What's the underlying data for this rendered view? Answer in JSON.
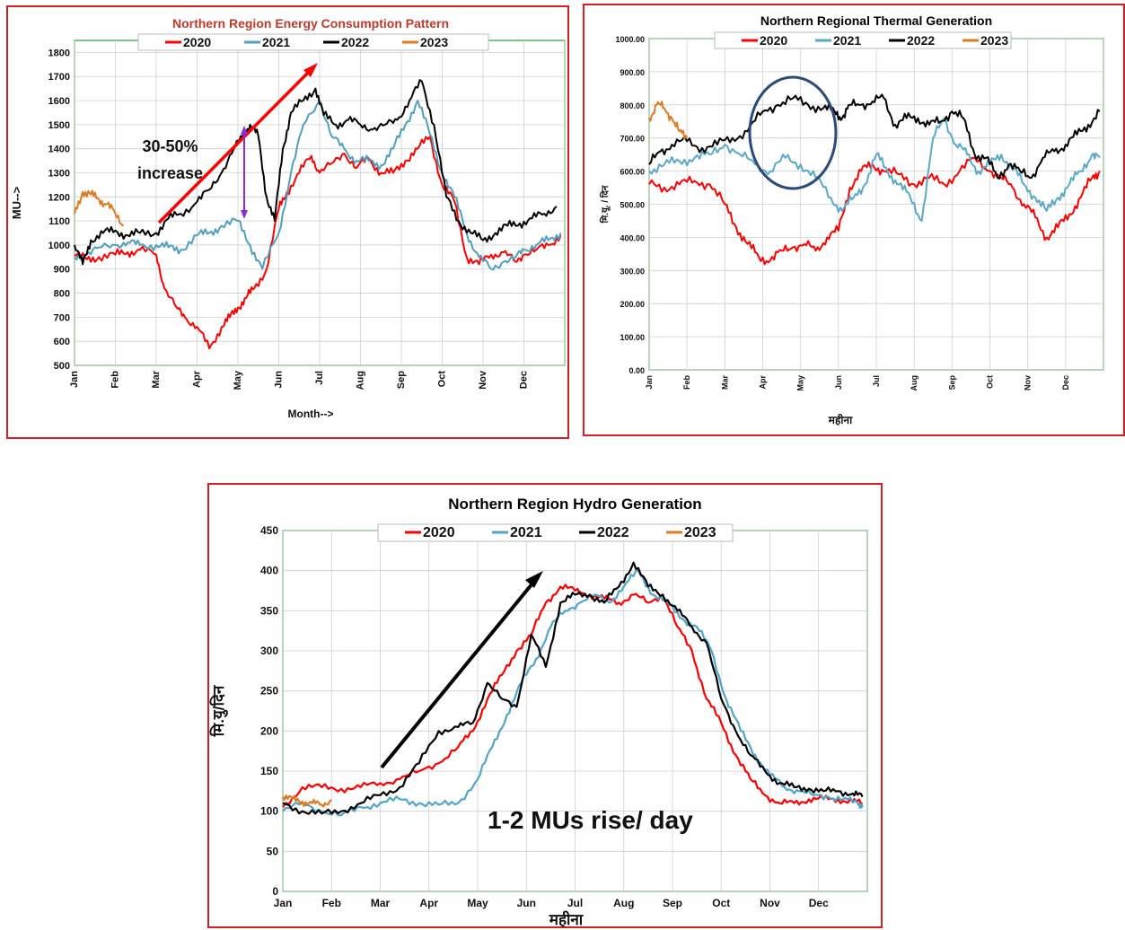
{
  "chart_data": [
    {
      "type": "line",
      "title": "Northern Region Energy Consumption  Pattern",
      "xlabel": "Month-->",
      "ylabel": "MU-->",
      "ylim": [
        500,
        1850
      ],
      "yticks": [
        500,
        600,
        700,
        800,
        900,
        1000,
        1100,
        1200,
        1300,
        1400,
        1500,
        1600,
        1700,
        1800
      ],
      "months": [
        "Jan",
        "Feb",
        "Mar",
        "Apr",
        "May",
        "Jun",
        "Jul",
        "Aug",
        "Sep",
        "Oct",
        "Nov",
        "Dec"
      ],
      "grid": true,
      "legend": "top",
      "series": [
        {
          "name": "2020",
          "color": "#ff0000",
          "x": [
            0,
            0.3,
            0.6,
            1,
            1.3,
            1.6,
            2,
            2.2,
            2.5,
            2.7,
            3,
            3.3,
            3.6,
            3.8,
            4,
            4.2,
            4.4,
            4.7,
            5,
            5.2,
            5.5,
            5.8,
            6,
            6.3,
            6.6,
            6.9,
            7.2,
            7.5,
            7.8,
            8.1,
            8.4,
            8.7,
            9,
            9.3,
            9.6,
            9.9,
            10.2,
            10.5,
            10.8,
            11,
            11.3,
            11.6,
            11.9
          ],
          "y": [
            960,
            940,
            950,
            960,
            970,
            980,
            960,
            820,
            740,
            700,
            660,
            570,
            660,
            700,
            740,
            780,
            820,
            900,
            1150,
            1220,
            1300,
            1370,
            1300,
            1340,
            1380,
            1320,
            1360,
            1300,
            1300,
            1350,
            1400,
            1450,
            1250,
            1180,
            950,
            920,
            960,
            970,
            930,
            960,
            980,
            1000,
            1040
          ]
        },
        {
          "name": "2021",
          "color": "#4f9fbf",
          "x": [
            0,
            0.3,
            0.6,
            1,
            1.3,
            1.6,
            2,
            2.3,
            2.6,
            3,
            3.3,
            3.6,
            4,
            4.3,
            4.6,
            5,
            5.3,
            5.6,
            6,
            6.3,
            6.6,
            6.9,
            7.2,
            7.5,
            7.8,
            8.1,
            8.4,
            8.7,
            9,
            9.3,
            9.6,
            9.9,
            10.2,
            10.5,
            10.8,
            11,
            11.3,
            11.6,
            11.9
          ],
          "y": [
            950,
            960,
            990,
            1000,
            1010,
            1000,
            1000,
            990,
            980,
            1040,
            1050,
            1080,
            1100,
            1000,
            900,
            1050,
            1300,
            1500,
            1600,
            1450,
            1400,
            1350,
            1350,
            1330,
            1400,
            1500,
            1600,
            1460,
            1300,
            1200,
            1050,
            950,
            900,
            930,
            950,
            980,
            1000,
            1020,
            1050
          ]
        },
        {
          "name": "2022",
          "color": "#000000",
          "x": [
            0,
            0.2,
            0.4,
            0.7,
            1,
            1.3,
            1.6,
            2,
            2.3,
            2.6,
            3,
            3.3,
            3.6,
            3.9,
            4.1,
            4.3,
            4.5,
            4.7,
            4.9,
            5.1,
            5.3,
            5.6,
            5.9,
            6.1,
            6.4,
            6.7,
            7,
            7.3,
            7.6,
            7.9,
            8.2,
            8.5,
            8.8,
            9.1,
            9.4,
            9.7,
            10,
            10.3,
            10.6,
            10.9,
            11.2,
            11.5,
            11.8
          ],
          "y": [
            1000,
            920,
            1020,
            1050,
            1060,
            1040,
            1050,
            1050,
            1110,
            1130,
            1180,
            1230,
            1300,
            1400,
            1450,
            1500,
            1450,
            1200,
            1100,
            1400,
            1550,
            1600,
            1650,
            1540,
            1500,
            1520,
            1500,
            1480,
            1500,
            1520,
            1600,
            1680,
            1500,
            1200,
            1100,
            1050,
            1020,
            1050,
            1080,
            1090,
            1110,
            1130,
            1160
          ]
        },
        {
          "name": "2023",
          "color": "#e07a1f",
          "x": [
            0,
            0.2,
            0.4,
            0.6,
            0.8,
            1,
            1.2
          ],
          "y": [
            1130,
            1220,
            1210,
            1190,
            1170,
            1130,
            1080
          ]
        }
      ]
    },
    {
      "type": "line",
      "title": "Northern Regional Thermal Generation",
      "xlabel": "महीना",
      "ylabel": "मि.यू. / दिन",
      "ylim": [
        0,
        1000
      ],
      "yticks": [
        "0.00",
        "100.00",
        "200.00",
        "300.00",
        "400.00",
        "500.00",
        "600.00",
        "700.00",
        "800.00",
        "900.00",
        "1000.00"
      ],
      "months": [
        "Jan",
        "Feb",
        "Mar",
        "Apr",
        "May",
        "Jun",
        "Jul",
        "Aug",
        "Sep",
        "Oct",
        "Nov",
        "Dec"
      ],
      "grid": true,
      "legend": "top",
      "series": [
        {
          "name": "2020",
          "color": "#ff0000",
          "x": [
            0,
            0.4,
            0.8,
            1.2,
            1.6,
            2,
            2.3,
            2.6,
            2.9,
            3.2,
            3.5,
            3.8,
            4.1,
            4.4,
            4.7,
            5,
            5.3,
            5.6,
            5.9,
            6.2,
            6.6,
            7,
            7.4,
            7.8,
            8.2,
            8.6,
            9,
            9.3,
            9.6,
            9.9,
            10.2,
            10.5,
            10.8,
            11.1,
            11.4,
            11.7,
            11.9
          ],
          "y": [
            560,
            550,
            560,
            570,
            560,
            500,
            430,
            380,
            340,
            330,
            360,
            370,
            380,
            360,
            400,
            420,
            550,
            600,
            620,
            600,
            590,
            560,
            580,
            560,
            600,
            640,
            600,
            580,
            550,
            500,
            460,
            400,
            430,
            470,
            520,
            580,
            600
          ]
        },
        {
          "name": "2021",
          "color": "#5aa9c9",
          "x": [
            0,
            0.4,
            0.8,
            1.2,
            1.6,
            2,
            2.4,
            2.8,
            3.2,
            3.6,
            4,
            4.4,
            4.8,
            5.1,
            5.4,
            5.7,
            6,
            6.3,
            6.6,
            6.9,
            7.2,
            7.5,
            7.8,
            8.1,
            8.4,
            8.7,
            9,
            9.3,
            9.6,
            9.9,
            10.2,
            10.5,
            10.8,
            11.1,
            11.4,
            11.7,
            11.9
          ],
          "y": [
            600,
            620,
            630,
            640,
            650,
            680,
            650,
            620,
            600,
            640,
            620,
            580,
            520,
            480,
            520,
            560,
            650,
            600,
            560,
            520,
            450,
            700,
            760,
            680,
            650,
            600,
            620,
            650,
            610,
            560,
            520,
            480,
            520,
            560,
            600,
            650,
            640
          ]
        },
        {
          "name": "2022",
          "color": "#000000",
          "x": [
            0,
            0.3,
            0.6,
            1,
            1.4,
            1.8,
            2.2,
            2.6,
            3,
            3.4,
            3.8,
            4.2,
            4.6,
            4.9,
            5.1,
            5.3,
            5.6,
            5.9,
            6.2,
            6.5,
            6.8,
            7.1,
            7.4,
            7.7,
            8,
            8.3,
            8.6,
            8.9,
            9.2,
            9.5,
            9.8,
            10.1,
            10.4,
            10.7,
            11,
            11.3,
            11.6,
            11.9
          ],
          "y": [
            620,
            660,
            680,
            690,
            670,
            680,
            700,
            720,
            780,
            800,
            820,
            800,
            790,
            780,
            760,
            800,
            800,
            810,
            820,
            740,
            760,
            760,
            740,
            750,
            780,
            760,
            650,
            640,
            580,
            620,
            600,
            580,
            640,
            660,
            680,
            710,
            740,
            780
          ]
        },
        {
          "name": "2023",
          "color": "#e07a1f",
          "x": [
            0,
            0.2,
            0.4,
            0.6,
            0.8,
            1
          ],
          "y": [
            760,
            800,
            790,
            760,
            720,
            700
          ]
        }
      ]
    },
    {
      "type": "line",
      "title": "Northern Region Hydro Generation",
      "xlabel": "महीना",
      "ylabel": "मि.यु/दिन",
      "ylim": [
        0,
        450
      ],
      "yticks": [
        0,
        50,
        100,
        150,
        200,
        250,
        300,
        350,
        400,
        450
      ],
      "months": [
        "Jan",
        "Feb",
        "Mar",
        "Apr",
        "May",
        "Jun",
        "Jul",
        "Aug",
        "Sep",
        "Oct",
        "Nov",
        "Dec"
      ],
      "grid": true,
      "legend": "top",
      "series": [
        {
          "name": "2020",
          "color": "#ff0000",
          "x": [
            0,
            0.4,
            0.8,
            1.2,
            1.6,
            2,
            2.4,
            2.8,
            3.2,
            3.6,
            3.9,
            4.2,
            4.5,
            4.8,
            5.1,
            5.4,
            5.7,
            6,
            6.3,
            6.6,
            6.9,
            7.2,
            7.5,
            7.8,
            8.1,
            8.4,
            8.7,
            9,
            9.3,
            9.6,
            9.9,
            10.2,
            10.5,
            10.8,
            11.1,
            11.4,
            11.7,
            11.9
          ],
          "y": [
            105,
            130,
            130,
            128,
            130,
            135,
            140,
            150,
            160,
            180,
            200,
            240,
            270,
            300,
            320,
            360,
            380,
            375,
            370,
            365,
            360,
            370,
            360,
            370,
            330,
            300,
            240,
            210,
            170,
            140,
            120,
            110,
            110,
            115,
            115,
            115,
            112,
            110
          ]
        },
        {
          "name": "2021",
          "color": "#4fa6c8",
          "x": [
            0,
            0.4,
            0.8,
            1.2,
            1.6,
            2,
            2.4,
            2.8,
            3.2,
            3.6,
            4,
            4.3,
            4.6,
            4.9,
            5.2,
            5.5,
            5.8,
            6.1,
            6.4,
            6.7,
            7,
            7.3,
            7.6,
            7.9,
            8.2,
            8.5,
            8.8,
            9.1,
            9.4,
            9.7,
            10,
            10.3,
            10.6,
            10.9,
            11.2,
            11.5,
            11.8,
            11.9
          ],
          "y": [
            100,
            110,
            100,
            95,
            105,
            110,
            115,
            110,
            108,
            110,
            140,
            180,
            220,
            260,
            290,
            330,
            350,
            360,
            370,
            360,
            380,
            400,
            370,
            360,
            340,
            330,
            300,
            240,
            200,
            170,
            145,
            130,
            125,
            120,
            118,
            115,
            110,
            108
          ]
        },
        {
          "name": "2022",
          "color": "#000000",
          "x": [
            0,
            0.4,
            0.8,
            1.2,
            1.6,
            2,
            2.4,
            2.8,
            3.2,
            3.6,
            3.9,
            4.2,
            4.5,
            4.8,
            5.1,
            5.4,
            5.7,
            6,
            6.3,
            6.6,
            6.9,
            7.2,
            7.5,
            7.8,
            8.1,
            8.4,
            8.7,
            9,
            9.3,
            9.6,
            9.9,
            10.2,
            10.5,
            10.8,
            11.1,
            11.4,
            11.7,
            11.9
          ],
          "y": [
            110,
            100,
            97,
            100,
            110,
            120,
            130,
            160,
            200,
            205,
            210,
            260,
            240,
            230,
            320,
            280,
            360,
            370,
            370,
            360,
            380,
            410,
            380,
            370,
            350,
            330,
            310,
            240,
            200,
            170,
            150,
            135,
            130,
            128,
            125,
            125,
            122,
            118
          ]
        },
        {
          "name": "2023",
          "color": "#e07a1f",
          "x": [
            0,
            0.2,
            0.4,
            0.6,
            0.8,
            1
          ],
          "y": [
            118,
            115,
            112,
            110,
            108,
            114
          ]
        }
      ]
    }
  ],
  "annotations": {
    "consumption_increase": "30-50%\nincrease",
    "hydro_rise": "1-2 MUs rise/ day"
  }
}
